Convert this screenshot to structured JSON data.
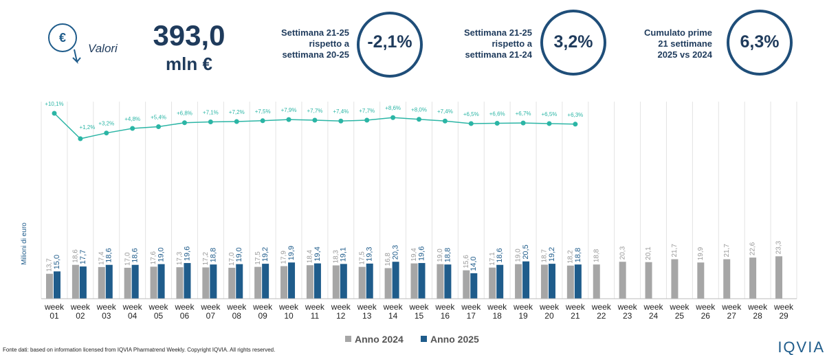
{
  "header": {
    "icon_label": "Valori",
    "total": "393,0",
    "unit": "mln €",
    "kpis": [
      {
        "label": [
          "Settimana 21-25",
          "rispetto a",
          "settimana 20-25"
        ],
        "value": "-2,1%"
      },
      {
        "label": [
          "Settimana 21-25",
          "rispetto a",
          "settimana 21-24"
        ],
        "value": "3,2%"
      },
      {
        "label": [
          "Cumulato prime",
          "21 settimane",
          "2025 vs 2024"
        ],
        "value": "6,3%"
      }
    ]
  },
  "chart_data": {
    "type": "bar",
    "y_label": "Milioni di euro",
    "categories": [
      "week 01",
      "week 02",
      "week 03",
      "week 04",
      "week 05",
      "week 06",
      "week 07",
      "week 08",
      "week 09",
      "week 10",
      "week 11",
      "week 12",
      "week 13",
      "week 14",
      "week 15",
      "week 16",
      "week 17",
      "week 18",
      "week 19",
      "week 20",
      "week 21",
      "week 22",
      "week 23",
      "week 24",
      "week 25",
      "week 26",
      "week 27",
      "week 28",
      "week 29"
    ],
    "series": [
      {
        "name": "Anno 2024",
        "color": "#a6a6a6",
        "values": [
          13.7,
          18.6,
          17.4,
          17.0,
          17.6,
          17.3,
          17.2,
          17.0,
          17.5,
          17.9,
          18.4,
          18.3,
          17.5,
          16.8,
          19.4,
          19.0,
          15.6,
          17.1,
          19.0,
          18.7,
          18.2,
          18.8,
          20.3,
          20.1,
          21.7,
          19.9,
          21.7,
          22.6,
          23.3
        ],
        "value_labels": [
          "13,7",
          "18,6",
          "17,4",
          "17,0",
          "17,6",
          "17,3",
          "17,2",
          "17,0",
          "17,5",
          "17,9",
          "18,4",
          "18,3",
          "17,5",
          "16,8",
          "19,4",
          "19,0",
          "15,6",
          "17,1",
          "19,0",
          "18,7",
          "18,2",
          "18,8",
          "20,3",
          "20,1",
          "21,7",
          "19,9",
          "21,7",
          "22,6",
          "23,3"
        ]
      },
      {
        "name": "Anno 2025",
        "color": "#1f5c8b",
        "values": [
          15.0,
          17.7,
          18.6,
          18.6,
          19.0,
          19.6,
          18.8,
          19.0,
          19.2,
          19.9,
          19.4,
          19.1,
          19.3,
          20.3,
          19.6,
          18.8,
          14.0,
          18.6,
          20.5,
          19.2,
          18.8,
          null,
          null,
          null,
          null,
          null,
          null,
          null,
          null
        ],
        "value_labels": [
          "15,0",
          "17,7",
          "18,6",
          "18,6",
          "19,0",
          "19,6",
          "18,8",
          "19,0",
          "19,2",
          "19,9",
          "19,4",
          "19,1",
          "19,3",
          "20,3",
          "19,6",
          "18,8",
          "14,0",
          "18,6",
          "20,5",
          "19,2",
          "18,8",
          null,
          null,
          null,
          null,
          null,
          null,
          null,
          null
        ]
      }
    ],
    "growth": {
      "type": "line",
      "color": "#2bb5a5",
      "values": [
        10.1,
        1.2,
        3.2,
        4.8,
        5.4,
        6.8,
        7.1,
        7.2,
        7.5,
        7.9,
        7.7,
        7.4,
        7.7,
        8.6,
        8.0,
        7.4,
        6.5,
        6.6,
        6.7,
        6.5,
        6.3
      ],
      "value_labels": [
        "+10,1%",
        "+1,2%",
        "+3,2%",
        "+4,8%",
        "+5,4%",
        "+6,8%",
        "+7,1%",
        "+7,2%",
        "+7,5%",
        "+7,9%",
        "+7,7%",
        "+7,4%",
        "+7,7%",
        "+8,6%",
        "+8,0%",
        "+7,4%",
        "+6,5%",
        "+6,6%",
        "+6,7%",
        "+6,5%",
        "+6,3%"
      ]
    }
  },
  "footer": {
    "source": "Fonte dati: based on information licensed from IQVIA Pharmatrend Weekly. Copyright IQVIA. All rights reserved.",
    "logo": "IQVIA"
  }
}
